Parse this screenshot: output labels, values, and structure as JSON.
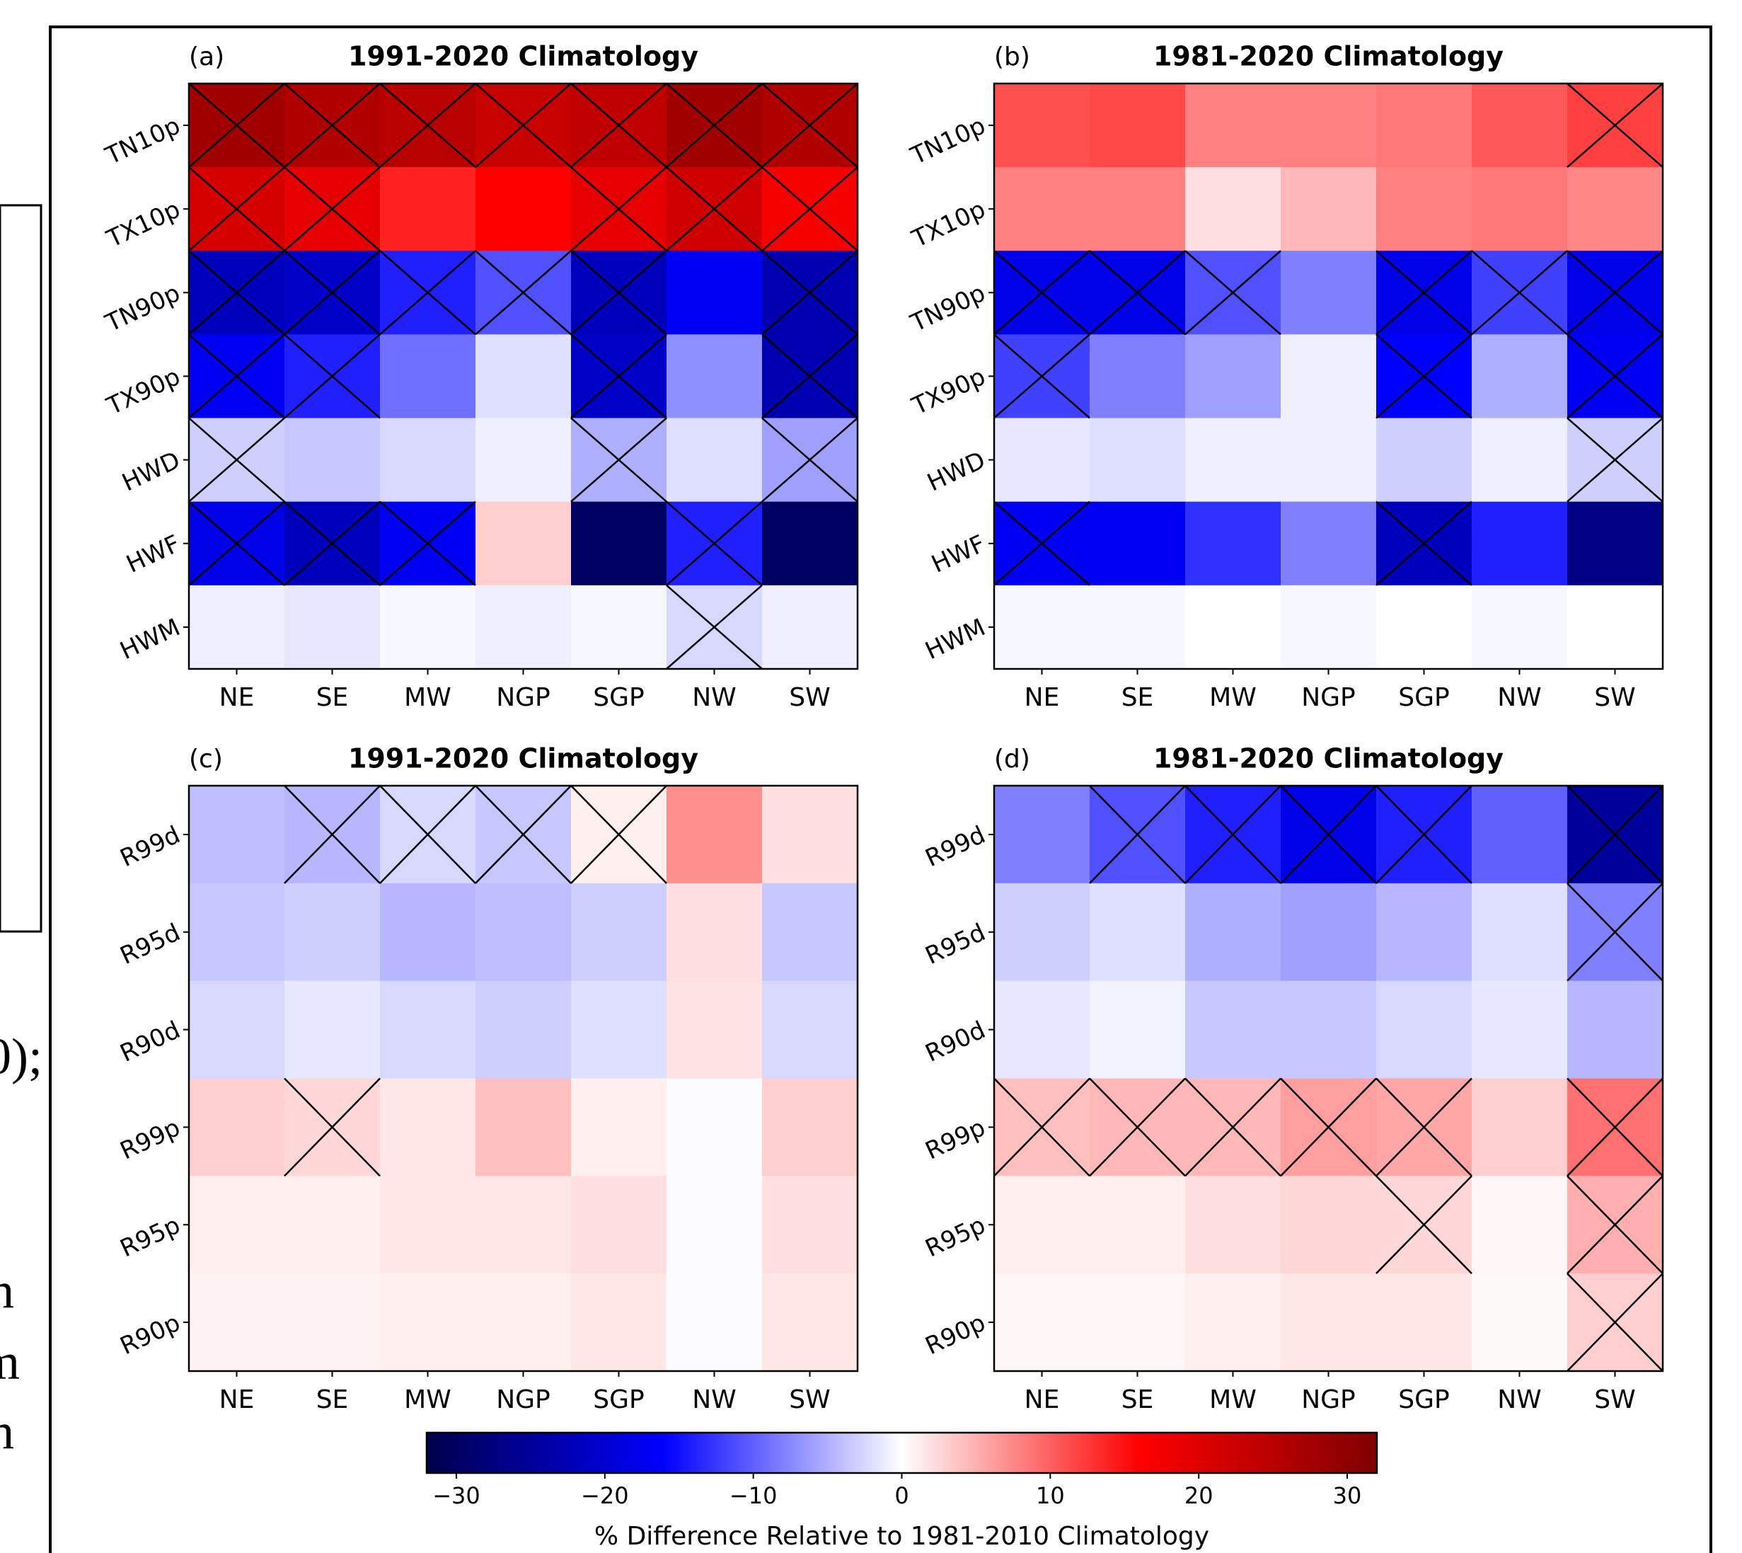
{
  "page_text": [
    "0);",
    "n",
    "m",
    "n"
  ],
  "colorbar": {
    "cmap": "seismic",
    "vlim": [
      -32,
      32
    ],
    "ticks": [
      {
        "value": -30,
        "label": "−30"
      },
      {
        "value": -20,
        "label": "−20"
      },
      {
        "value": -10,
        "label": "−10"
      },
      0,
      10,
      20,
      30
    ],
    "label": "% Difference Relative to 1981-2010 Climatology"
  },
  "chart_data": [
    {
      "type": "heatmap",
      "panel_label": "(a)",
      "title": "1991-2020 Climatology",
      "x": [
        "NE",
        "SE",
        "MW",
        "NGP",
        "SGP",
        "NW",
        "SW"
      ],
      "y": [
        "TN10p",
        "TX10p",
        "TN90p",
        "TX90p",
        "HWD",
        "HWF",
        "HWM"
      ],
      "values": [
        [
          28,
          26,
          25,
          23,
          24,
          28,
          26
        ],
        [
          21,
          19,
          14,
          16,
          19,
          22,
          17
        ],
        [
          -22,
          -21,
          -14,
          -11,
          -22,
          -17,
          -23
        ],
        [
          -17,
          -14,
          -9,
          -2,
          -21,
          -7,
          -23
        ],
        [
          -3,
          -3.5,
          -2.5,
          -1,
          -5,
          -2,
          -6
        ],
        [
          -18,
          -22,
          -17,
          3,
          -30,
          -14,
          -30
        ],
        [
          -1,
          -1.5,
          -0.5,
          -1,
          -0.5,
          -2.5,
          -1
        ]
      ],
      "hatch": [
        [
          true,
          true,
          true,
          true,
          true,
          true,
          true
        ],
        [
          true,
          true,
          false,
          false,
          true,
          true,
          true
        ],
        [
          true,
          true,
          true,
          true,
          true,
          false,
          true
        ],
        [
          true,
          true,
          false,
          false,
          true,
          false,
          true
        ],
        [
          true,
          false,
          false,
          false,
          true,
          false,
          true
        ],
        [
          true,
          true,
          true,
          false,
          false,
          true,
          false
        ],
        [
          false,
          false,
          false,
          false,
          false,
          true,
          false
        ]
      ]
    },
    {
      "type": "heatmap",
      "panel_label": "(b)",
      "title": "1981-2020 Climatology",
      "x": [
        "NE",
        "SE",
        "MW",
        "NGP",
        "SGP",
        "NW",
        "SW"
      ],
      "y": [
        "TN10p",
        "TX10p",
        "TN90p",
        "TX90p",
        "HWD",
        "HWF",
        "HWM"
      ],
      "values": [
        [
          11,
          11.5,
          8,
          8,
          8.5,
          10.5,
          12
        ],
        [
          8,
          8,
          2,
          4.5,
          8,
          8.5,
          7.5
        ],
        [
          -18,
          -18,
          -11,
          -8,
          -18,
          -12,
          -18
        ],
        [
          -12,
          -8,
          -6,
          -1,
          -16,
          -5,
          -17
        ],
        [
          -1.5,
          -2,
          -1,
          -1,
          -3,
          -1,
          -3
        ],
        [
          -17,
          -17,
          -13,
          -8,
          -22,
          -14,
          -27
        ],
        [
          -0.5,
          -0.5,
          0,
          -0.5,
          0,
          -0.5,
          0
        ]
      ],
      "hatch": [
        [
          false,
          false,
          false,
          false,
          false,
          false,
          true
        ],
        [
          false,
          false,
          false,
          false,
          false,
          false,
          false
        ],
        [
          true,
          true,
          true,
          false,
          true,
          true,
          true
        ],
        [
          true,
          false,
          false,
          false,
          true,
          false,
          true
        ],
        [
          false,
          false,
          false,
          false,
          false,
          false,
          true
        ],
        [
          true,
          false,
          false,
          false,
          true,
          false,
          false
        ],
        [
          false,
          false,
          false,
          false,
          false,
          false,
          false
        ]
      ]
    },
    {
      "type": "heatmap",
      "panel_label": "(c)",
      "title": "1991-2020 Climatology",
      "x": [
        "NE",
        "SE",
        "MW",
        "NGP",
        "SGP",
        "NW",
        "SW"
      ],
      "y": [
        "R99d",
        "R95d",
        "R90d",
        "R99p",
        "R95p",
        "R90p"
      ],
      "values": [
        [
          -4,
          -4.5,
          -2.5,
          -3.5,
          1,
          7,
          2
        ],
        [
          -3.5,
          -3,
          -4.5,
          -4,
          -3,
          2,
          -3.5
        ],
        [
          -2.5,
          -1.5,
          -2.5,
          -3,
          -2,
          1.8,
          -2.5
        ],
        [
          3,
          2.5,
          1.5,
          4,
          1,
          -0.2,
          3
        ],
        [
          1,
          1,
          1.5,
          1.5,
          2,
          -0.2,
          2
        ],
        [
          0.8,
          0.8,
          1,
          1,
          1.5,
          -0.2,
          1.5
        ]
      ],
      "hatch": [
        [
          false,
          true,
          true,
          true,
          true,
          false,
          false
        ],
        [
          false,
          false,
          false,
          false,
          false,
          false,
          false
        ],
        [
          false,
          false,
          false,
          false,
          false,
          false,
          false
        ],
        [
          false,
          true,
          false,
          false,
          false,
          false,
          false
        ],
        [
          false,
          false,
          false,
          false,
          false,
          false,
          false
        ],
        [
          false,
          false,
          false,
          false,
          false,
          false,
          false
        ]
      ]
    },
    {
      "type": "heatmap",
      "panel_label": "(d)",
      "title": "1981-2020 Climatology",
      "x": [
        "NE",
        "SE",
        "MW",
        "NGP",
        "SGP",
        "NW",
        "SW"
      ],
      "y": [
        "R99d",
        "R95d",
        "R90d",
        "R99p",
        "R95p",
        "R90p"
      ],
      "values": [
        [
          -8,
          -11,
          -14,
          -18,
          -14,
          -10,
          -25
        ],
        [
          -3,
          -2,
          -5,
          -6,
          -4.5,
          -2,
          -8
        ],
        [
          -1.5,
          -0.8,
          -3.5,
          -3.5,
          -2.5,
          -1.5,
          -4.5
        ],
        [
          4,
          4.5,
          4.5,
          6,
          5.5,
          3,
          9
        ],
        [
          1,
          1,
          2,
          2.5,
          2.5,
          0.5,
          5
        ],
        [
          0.5,
          0.5,
          1,
          1.5,
          1.5,
          0.3,
          3
        ]
      ],
      "hatch": [
        [
          false,
          true,
          true,
          true,
          true,
          false,
          true
        ],
        [
          false,
          false,
          false,
          false,
          false,
          false,
          true
        ],
        [
          false,
          false,
          false,
          false,
          false,
          false,
          false
        ],
        [
          true,
          true,
          true,
          true,
          true,
          false,
          true
        ],
        [
          false,
          false,
          false,
          false,
          true,
          false,
          true
        ],
        [
          false,
          false,
          false,
          false,
          false,
          false,
          true
        ]
      ]
    }
  ]
}
